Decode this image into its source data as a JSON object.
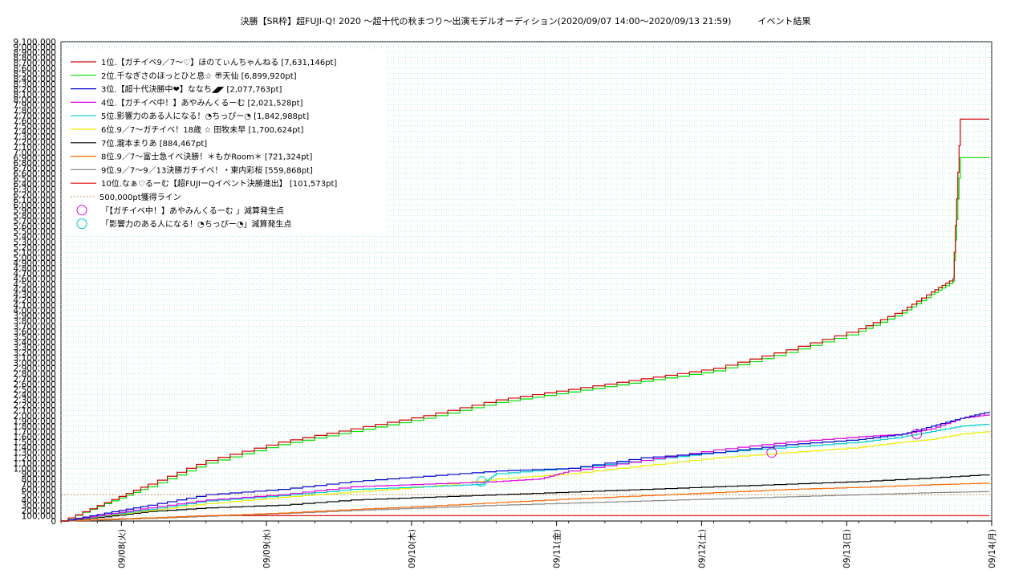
{
  "chart_data": {
    "type": "line",
    "title": "決勝【SR枠】超FUJI-Q! 2020 〜超十代の秋まつり〜出演モデルオーディション(2020/09/07 14:00〜2020/09/13 21:59)　　　イベント結果",
    "xlabel": "",
    "ylabel": "",
    "x_range": [
      "2020/09/07 14:00",
      "2020/09/14 00:00"
    ],
    "x_ticks": [
      "09/08(火)",
      "09/09(水)",
      "09/10(木)",
      "09/11(金)",
      "09/12(土)",
      "09/13(日)",
      "09/14(月)"
    ],
    "ylim": [
      0,
      9100000
    ],
    "y_tick_step": 100000,
    "grid": true,
    "legend_position": "top-left",
    "series": [
      {
        "name": "1位.【ガチイベ9／7〜♡】ほのてぃんちゃんねる [7,631,146pt]",
        "color": "#cc0000",
        "x": [
          0,
          0.3,
          0.6,
          1.0,
          1.5,
          2.0,
          2.5,
          3.0,
          3.5,
          4.0,
          4.5,
          5.0,
          5.5,
          5.8,
          6.0,
          6.15,
          6.2,
          6.4
        ],
        "y": [
          0,
          350000,
          700000,
          1150000,
          1500000,
          1750000,
          2000000,
          2300000,
          2500000,
          2700000,
          2900000,
          3250000,
          3650000,
          4000000,
          4350000,
          4600000,
          7631146,
          7631146
        ]
      },
      {
        "name": "2位.千なぎさのほっとひと息☆ 〠天仙 [6,899,920pt]",
        "color": "#00dd00",
        "x": [
          0,
          0.3,
          0.6,
          1.0,
          1.5,
          2.0,
          2.5,
          3.0,
          3.5,
          4.0,
          4.5,
          5.0,
          5.5,
          5.8,
          6.0,
          6.15,
          6.2,
          6.4
        ],
        "y": [
          0,
          330000,
          650000,
          1100000,
          1450000,
          1700000,
          1950000,
          2250000,
          2450000,
          2650000,
          2850000,
          3200000,
          3600000,
          3950000,
          4300000,
          4550000,
          6899920,
          6899920
        ]
      },
      {
        "name": "3位.【超十代決勝中❤】ななち◢◤ [2,077,763pt]",
        "color": "#0000cc",
        "x": [
          0,
          0.3,
          0.6,
          1.0,
          1.5,
          2.0,
          2.5,
          3.0,
          3.5,
          4.0,
          4.5,
          5.0,
          5.5,
          5.8,
          6.0,
          6.2,
          6.4
        ],
        "y": [
          0,
          150000,
          300000,
          500000,
          600000,
          750000,
          850000,
          950000,
          1000000,
          1200000,
          1300000,
          1450000,
          1550000,
          1650000,
          1800000,
          1950000,
          2077763
        ]
      },
      {
        "name": "4位.【ガチイベ中！】あやみんくるーむ [2,021,528pt]",
        "color": "#dd00dd",
        "x": [
          0,
          0.3,
          0.6,
          1.0,
          1.5,
          2.0,
          2.5,
          3.0,
          3.3,
          3.5,
          4.0,
          4.5,
          5.0,
          5.5,
          5.8,
          6.0,
          6.2,
          6.4
        ],
        "y": [
          0,
          120000,
          250000,
          400000,
          500000,
          650000,
          700000,
          750000,
          800000,
          950000,
          1150000,
          1350000,
          1500000,
          1600000,
          1650000,
          1750000,
          1950000,
          2021528
        ]
      },
      {
        "name": "5位.影響力のある人になる！◔ちっぴー◔ [1,842,988pt]",
        "color": "#00cccc",
        "x": [
          0,
          0.3,
          0.6,
          1.0,
          1.5,
          2.0,
          2.5,
          2.9,
          3.0,
          3.5,
          4.0,
          4.5,
          5.0,
          5.5,
          5.8,
          6.0,
          6.2,
          6.4
        ],
        "y": [
          0,
          110000,
          220000,
          380000,
          480000,
          600000,
          650000,
          700000,
          900000,
          1000000,
          1150000,
          1300000,
          1400000,
          1500000,
          1600000,
          1700000,
          1800000,
          1842988
        ]
      },
      {
        "name": "6位.9／7〜ガチイベ！18歳 ☆ 田牧未早 [1,700,624pt]",
        "color": "#eeee00",
        "x": [
          0,
          0.3,
          0.6,
          1.0,
          1.5,
          2.0,
          2.5,
          3.0,
          3.5,
          4.0,
          4.5,
          5.0,
          5.5,
          5.8,
          6.0,
          6.2,
          6.4
        ],
        "y": [
          0,
          100000,
          200000,
          330000,
          450000,
          550000,
          650000,
          800000,
          900000,
          1050000,
          1200000,
          1300000,
          1400000,
          1500000,
          1550000,
          1650000,
          1700624
        ]
      },
      {
        "name": "7位.瀧本まりあ [884,467pt]",
        "color": "#000000",
        "x": [
          0,
          0.3,
          0.6,
          1.0,
          1.5,
          2.0,
          2.5,
          3.0,
          3.5,
          4.0,
          4.5,
          5.0,
          5.5,
          6.0,
          6.4
        ],
        "y": [
          0,
          80000,
          180000,
          250000,
          300000,
          400000,
          450000,
          500000,
          550000,
          600000,
          650000,
          700000,
          750000,
          820000,
          884467
        ]
      },
      {
        "name": "8位.9／7〜富士急イベ決勝！＊もかRoom＊ [721,324pt]",
        "color": "#ff6600",
        "x": [
          0,
          0.3,
          0.6,
          1.0,
          1.5,
          2.0,
          2.5,
          3.0,
          3.5,
          4.0,
          4.5,
          5.0,
          5.5,
          6.0,
          6.4
        ],
        "y": [
          0,
          30000,
          60000,
          100000,
          150000,
          220000,
          280000,
          350000,
          420000,
          480000,
          540000,
          600000,
          640000,
          690000,
          721324
        ]
      },
      {
        "name": "9位.9／7〜9／13決勝ガチイベ！・東内彩桜 [559,868pt]",
        "color": "#888888",
        "x": [
          0,
          0.3,
          0.6,
          1.0,
          1.5,
          2.0,
          2.5,
          3.0,
          3.5,
          4.0,
          4.5,
          5.0,
          5.5,
          6.0,
          6.4
        ],
        "y": [
          0,
          20000,
          50000,
          90000,
          140000,
          200000,
          250000,
          300000,
          340000,
          380000,
          420000,
          460000,
          500000,
          540000,
          559868
        ]
      },
      {
        "name": "10位.なぁ♡るーむ【超FUJIーQイベント決勝進出】 [101,573pt]",
        "color": "#dd0000",
        "x": [
          0,
          0.3,
          0.6,
          1.0,
          6.4
        ],
        "y": [
          0,
          30000,
          60000,
          101573,
          101573
        ]
      }
    ],
    "reference_line": {
      "name": "500,000pt獲得ライン",
      "value": 500000,
      "color": "#cc9966"
    },
    "markers": [
      {
        "name": "「【ガチイベ中！】あやみんくるーむ 」減算発生点",
        "color": "#dd00dd",
        "points": [
          [
            4.9,
            1300000
          ],
          [
            5.9,
            1650000
          ]
        ]
      },
      {
        "name": "「影響力のある人になる！◔ちっぴー◔」減算発生点",
        "color": "#00cccc",
        "points": [
          [
            2.9,
            750000
          ]
        ]
      }
    ]
  }
}
